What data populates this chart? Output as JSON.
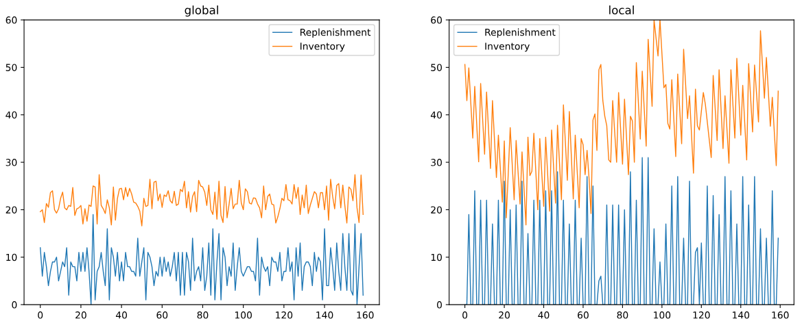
{
  "chart_data": [
    {
      "type": "line",
      "title": "global",
      "xlim": [
        -8,
        167
      ],
      "xticks": [
        0,
        20,
        40,
        60,
        80,
        100,
        120,
        140,
        160
      ],
      "ylim": [
        0,
        60
      ],
      "yticks": [
        0,
        10,
        20,
        30,
        40,
        50,
        60
      ],
      "grid": false,
      "legend": "top right",
      "series": [
        {
          "name": "Replenishment",
          "color": "#1f77b4",
          "x": [
            0,
            1,
            2,
            3,
            4,
            5,
            6,
            7,
            8,
            9,
            10,
            11,
            12,
            13,
            14,
            15,
            16,
            17,
            18,
            19,
            20,
            21,
            22,
            23,
            24,
            25,
            26,
            27,
            28,
            29,
            30,
            31,
            32,
            33,
            34,
            35,
            36,
            37,
            38,
            39,
            40,
            41,
            42,
            43,
            44,
            45,
            46,
            47,
            48,
            49,
            50,
            51,
            52,
            53,
            54,
            55,
            56,
            57,
            58,
            59,
            60,
            61,
            62,
            63,
            64,
            65,
            66,
            67,
            68,
            69,
            70,
            71,
            72,
            73,
            74,
            75,
            76,
            77,
            78,
            79,
            80,
            81,
            82,
            83,
            84,
            85,
            86,
            87,
            88,
            89,
            90,
            91,
            92,
            93,
            94,
            95,
            96,
            97,
            98,
            99,
            100,
            101,
            102,
            103,
            104,
            105,
            106,
            107,
            108,
            109,
            110,
            111,
            112,
            113,
            114,
            115,
            116,
            117,
            118,
            119,
            120,
            121,
            122,
            123,
            124,
            125,
            126,
            127,
            128,
            129,
            130,
            131,
            132,
            133,
            134,
            135,
            136,
            137,
            138,
            139,
            140,
            141,
            142,
            143,
            144,
            145,
            146,
            147,
            148,
            149,
            150,
            151,
            152,
            153,
            154,
            155,
            156,
            157,
            158,
            159
          ],
          "values": [
            12,
            6,
            11,
            8,
            4,
            7,
            9,
            9,
            10,
            5,
            7,
            9,
            8,
            12,
            2,
            9,
            8,
            8,
            5,
            11,
            7,
            11,
            7,
            12,
            7,
            0,
            19,
            1,
            7,
            8,
            11,
            7,
            4,
            16,
            1,
            12,
            10,
            6,
            11,
            5,
            9,
            5,
            11,
            8,
            8,
            7,
            7,
            6,
            14,
            6,
            9,
            12,
            1,
            11,
            10,
            8,
            4,
            7,
            6,
            10,
            6,
            10,
            7,
            9,
            6,
            8,
            11,
            5,
            11,
            2,
            11,
            2,
            11,
            9,
            3,
            14,
            5,
            7,
            8,
            5,
            12,
            3,
            6,
            13,
            2,
            16,
            1,
            9,
            15,
            1,
            12,
            10,
            4,
            8,
            6,
            13,
            3,
            8,
            12,
            7,
            6,
            7,
            8,
            8,
            7,
            7,
            5,
            14,
            2,
            10,
            8,
            7,
            8,
            4,
            10,
            9,
            9,
            7,
            11,
            5,
            7,
            7,
            12,
            7,
            9,
            1,
            12,
            6,
            13,
            3,
            8,
            9,
            9,
            8,
            4,
            11,
            7,
            10,
            9,
            1,
            16,
            4,
            4,
            12,
            8,
            3,
            13,
            7,
            3,
            15,
            8,
            3,
            15,
            3,
            2,
            17,
            0,
            8,
            15,
            2
          ]
        },
        {
          "name": "Inventory",
          "color": "#ff7f0e",
          "x": [
            0,
            1,
            2,
            3,
            4,
            5,
            6,
            7,
            8,
            9,
            10,
            11,
            12,
            13,
            14,
            15,
            16,
            17,
            18,
            19,
            20,
            21,
            22,
            23,
            24,
            25,
            26,
            27,
            28,
            29,
            30,
            31,
            32,
            33,
            34,
            35,
            36,
            37,
            38,
            39,
            40,
            41,
            42,
            43,
            44,
            45,
            46,
            47,
            48,
            49,
            50,
            51,
            52,
            53,
            54,
            55,
            56,
            57,
            58,
            59,
            60,
            61,
            62,
            63,
            64,
            65,
            66,
            67,
            68,
            69,
            70,
            71,
            72,
            73,
            74,
            75,
            76,
            77,
            78,
            79,
            80,
            81,
            82,
            83,
            84,
            85,
            86,
            87,
            88,
            89,
            90,
            91,
            92,
            93,
            94,
            95,
            96,
            97,
            98,
            99,
            100,
            101,
            102,
            103,
            104,
            105,
            106,
            107,
            108,
            109,
            110,
            111,
            112,
            113,
            114,
            115,
            116,
            117,
            118,
            119,
            120,
            121,
            122,
            123,
            124,
            125,
            126,
            127,
            128,
            129,
            130,
            131,
            132,
            133,
            134,
            135,
            136,
            137,
            138,
            139,
            140,
            141,
            142,
            143,
            144,
            145,
            146,
            147,
            148,
            149,
            150,
            151,
            152,
            153,
            154,
            155,
            156,
            157,
            158,
            159
          ],
          "values": [
            19.6,
            20.0,
            17.3,
            21.3,
            20.5,
            23.6,
            24.0,
            20.0,
            19.3,
            20.2,
            22.4,
            23.7,
            20.4,
            20.0,
            20.9,
            20.7,
            24.7,
            18.8,
            20.2,
            20.4,
            20.9,
            17.0,
            20.2,
            17.6,
            21.0,
            20.7,
            25.0,
            24.8,
            17.0,
            27.4,
            20.9,
            20.2,
            19.2,
            22.1,
            20.4,
            16.8,
            24.8,
            17.8,
            22.4,
            24.4,
            24.5,
            22.1,
            24.7,
            22.8,
            24.5,
            23.3,
            21.6,
            21.4,
            20.7,
            19.7,
            16.6,
            22.4,
            20.7,
            20.9,
            26.4,
            20.2,
            25.8,
            26.0,
            21.9,
            23.3,
            20.5,
            23.1,
            22.8,
            24.0,
            21.9,
            21.4,
            23.9,
            20.9,
            21.2,
            24.3,
            23.8,
            26.0,
            20.4,
            23.8,
            19.5,
            22.8,
            23.8,
            19.6,
            26.2,
            25.0,
            24.8,
            23.7,
            20.9,
            25.2,
            20.0,
            19.0,
            23.7,
            18.0,
            26.0,
            18.8,
            17.3,
            24.9,
            18.3,
            21.2,
            24.5,
            20.2,
            21.2,
            21.2,
            26.2,
            21.4,
            20.0,
            24.4,
            23.8,
            21.4,
            21.2,
            22.5,
            22.4,
            21.2,
            20.4,
            18.3,
            25.0,
            20.0,
            22.8,
            23.3,
            21.2,
            21.0,
            17.2,
            18.5,
            20.2,
            22.4,
            21.9,
            25.3,
            22.1,
            21.9,
            21.2,
            25.3,
            22.4,
            24.7,
            19.0,
            23.1,
            20.4,
            25.2,
            19.2,
            21.0,
            22.4,
            23.8,
            23.3,
            20.4,
            23.6,
            23.6,
            20.0,
            25.0,
            17.8,
            26.4,
            22.8,
            20.2,
            25.1,
            25.5,
            20.4,
            25.2,
            20.9,
            17.2,
            24.8,
            24.3,
            21.9,
            27.4,
            20.4,
            17.3,
            27.3,
            19.0
          ]
        }
      ]
    },
    {
      "type": "line",
      "title": "local",
      "xlim": [
        -8,
        167
      ],
      "xticks": [
        0,
        20,
        40,
        60,
        80,
        100,
        120,
        140,
        160
      ],
      "ylim": [
        0,
        60
      ],
      "yticks": [
        0,
        10,
        20,
        30,
        40,
        50,
        60
      ],
      "grid": false,
      "legend": "top left",
      "series": [
        {
          "name": "Replenishment",
          "color": "#1f77b4",
          "x": [
            0,
            1,
            2,
            3,
            4,
            5,
            6,
            7,
            8,
            9,
            10,
            11,
            12,
            13,
            14,
            15,
            16,
            17,
            18,
            19,
            20,
            21,
            22,
            23,
            24,
            25,
            26,
            27,
            28,
            29,
            30,
            31,
            32,
            33,
            34,
            35,
            36,
            37,
            38,
            39,
            40,
            41,
            42,
            43,
            44,
            45,
            46,
            47,
            48,
            49,
            50,
            51,
            52,
            53,
            54,
            55,
            56,
            57,
            58,
            59,
            60,
            61,
            62,
            63,
            64,
            65,
            66,
            67,
            68,
            69,
            70,
            71,
            72,
            73,
            74,
            75,
            76,
            77,
            78,
            79,
            80,
            81,
            82,
            83,
            84,
            85,
            86,
            87,
            88,
            89,
            90,
            91,
            92,
            93,
            94,
            95,
            96,
            97,
            98,
            99,
            100,
            101,
            102,
            103,
            104,
            105,
            106,
            107,
            108,
            109,
            110,
            111,
            112,
            113,
            114,
            115,
            116,
            117,
            118,
            119,
            120,
            121,
            122,
            123,
            124,
            125,
            126,
            127,
            128,
            129,
            130,
            131,
            132,
            133,
            134,
            135,
            136,
            137,
            138,
            139,
            140,
            141,
            142,
            143,
            144,
            145,
            146,
            147,
            148,
            149,
            150,
            151,
            152,
            153,
            154,
            155,
            156,
            157,
            158,
            159
          ],
          "values": [
            0,
            0,
            19,
            0,
            0,
            24,
            0,
            0,
            22,
            0,
            0,
            22,
            0,
            0,
            17,
            0,
            0,
            22,
            0,
            0,
            26,
            0,
            0,
            20,
            0,
            0,
            21,
            0,
            0,
            26,
            0,
            0,
            15,
            0,
            0,
            22,
            0,
            0,
            22,
            0,
            0,
            24,
            0,
            0,
            24,
            0,
            0,
            28,
            0,
            0,
            22,
            0,
            0,
            17,
            0,
            0,
            22,
            0,
            0,
            14,
            0,
            0,
            27,
            0,
            0,
            25,
            0,
            0,
            5,
            6,
            0,
            0,
            21,
            0,
            0,
            21,
            0,
            0,
            21,
            0,
            0,
            20,
            0,
            0,
            28,
            0,
            0,
            22,
            0,
            0,
            31,
            0,
            0,
            31,
            0,
            0,
            16,
            0,
            0,
            9,
            0,
            0,
            17,
            0,
            0,
            25,
            0,
            0,
            27,
            0,
            0,
            14,
            0,
            0,
            26,
            0,
            0,
            11,
            12,
            0,
            13,
            0,
            0,
            25,
            0,
            0,
            23,
            0,
            0,
            19,
            0,
            0,
            27,
            0,
            0,
            24,
            0,
            0,
            17,
            0,
            0,
            27,
            0,
            0,
            21,
            0,
            0,
            27,
            0,
            0,
            16,
            0,
            0,
            14,
            0,
            0,
            24,
            0,
            0,
            14
          ]
        },
        {
          "name": "Inventory",
          "color": "#ff7f0e",
          "x": [
            0,
            1,
            2,
            4,
            5,
            7,
            8,
            10,
            11,
            13,
            14,
            16,
            17,
            19,
            20,
            21,
            22,
            23,
            25,
            26,
            28,
            29,
            31,
            32,
            33,
            34,
            35,
            37,
            38,
            40,
            41,
            43,
            44,
            46,
            47,
            49,
            50,
            52,
            53,
            55,
            56,
            58,
            59,
            60,
            61,
            62,
            63,
            64,
            65,
            66,
            67,
            68,
            69,
            70,
            71,
            72,
            73,
            74,
            75,
            77,
            78,
            80,
            81,
            83,
            84,
            85,
            86,
            87,
            89,
            90,
            92,
            93,
            95,
            96,
            98,
            99,
            101,
            102,
            103,
            104,
            105,
            107,
            108,
            110,
            111,
            113,
            114,
            116,
            117,
            118,
            119,
            121,
            122,
            125,
            126,
            128,
            129,
            131,
            132,
            134,
            135,
            137,
            138,
            140,
            141,
            143,
            144,
            146,
            147,
            149,
            150,
            152,
            153,
            155,
            156,
            158,
            159
          ],
          "values": [
            50.6,
            43.0,
            49.9,
            35.1,
            46.0,
            30.1,
            46.6,
            31.7,
            44.8,
            28.7,
            43.0,
            26.8,
            35.7,
            21.6,
            34.5,
            18.3,
            27.6,
            37.3,
            22.1,
            34.6,
            21.2,
            32.2,
            16.8,
            35.3,
            27.2,
            28.1,
            36.1,
            20.0,
            35.0,
            20.7,
            35.3,
            19.7,
            36.8,
            21.4,
            37.8,
            22.1,
            42.1,
            26.2,
            40.7,
            22.3,
            35.7,
            20.4,
            35.0,
            33.7,
            27.4,
            32.5,
            26.7,
            19.2,
            38.9,
            40.2,
            32.5,
            49.5,
            50.6,
            43.0,
            39.7,
            37.7,
            30.5,
            30.0,
            43.0,
            30.0,
            44.7,
            29.6,
            43.3,
            27.4,
            39.7,
            38.7,
            30.0,
            51.0,
            34.9,
            49.2,
            33.4,
            55.9,
            41.8,
            60,
            52.4,
            60,
            45.7,
            46.4,
            38.2,
            37.0,
            47.4,
            31.2,
            48.6,
            33.9,
            53.8,
            39.2,
            44.0,
            27.7,
            45.4,
            37.7,
            36.8,
            44.7,
            42.3,
            31.0,
            48.3,
            34.6,
            49.5,
            32.9,
            44.0,
            29.8,
            49.5,
            35.1,
            51.9,
            35.7,
            46.2,
            30.5,
            50.8,
            36.4,
            50.5,
            38.5,
            57.7,
            43.5,
            52.1,
            37.6,
            43.7,
            29.3,
            45.0
          ]
        }
      ]
    }
  ]
}
